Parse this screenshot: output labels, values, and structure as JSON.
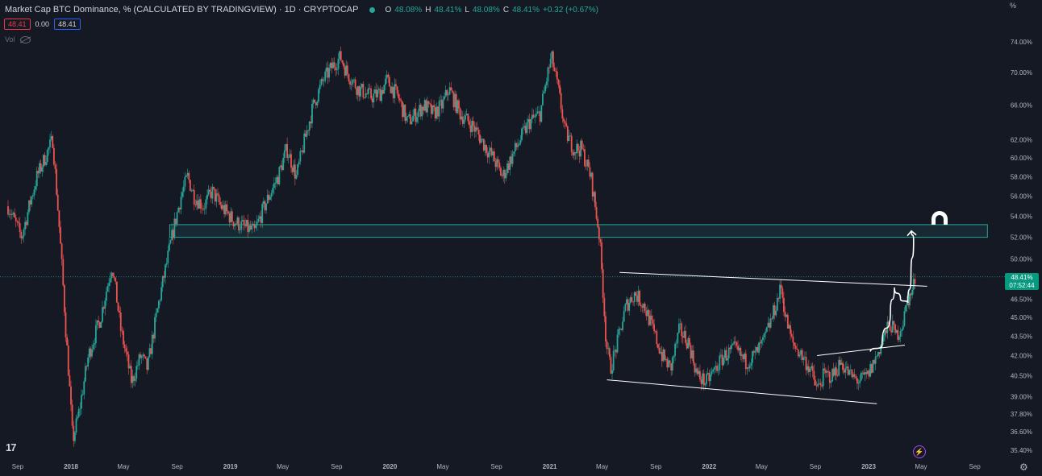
{
  "header": {
    "title": "Market Cap BTC Dominance, % (CALCULATED BY TRADINGVIEW) · 1D · CRYPTOCAP",
    "o_label": "O",
    "o_value": "48.08%",
    "h_label": "H",
    "h_value": "48.41%",
    "l_label": "L",
    "l_value": "48.08%",
    "c_label": "C",
    "c_value": "48.41%",
    "change": "+0.32 (+0.67%)"
  },
  "indicators": {
    "price_box": "48.41",
    "spread": "0.00",
    "price_box2": "48.41",
    "vol_label": "Vol"
  },
  "axis": {
    "unit": "%"
  },
  "price_tag": {
    "value": "48.41%",
    "countdown": "07:52:44"
  },
  "colors": {
    "up": "#26a69a",
    "down": "#ef5350",
    "zone": "#26a69a",
    "background": "#151924",
    "drawing": "#ffffff"
  },
  "icons": {
    "logo": "tradingview-logo-icon",
    "lightning": "lightning-icon",
    "settings": "gear-icon",
    "target": "magnet-icon",
    "visibility": "eye-off-icon"
  },
  "chart_data": {
    "type": "candlestick",
    "y_scale": "log",
    "y_ticks": [
      "74.00%",
      "70.00%",
      "66.00%",
      "62.00%",
      "60.00%",
      "58.00%",
      "56.00%",
      "54.00%",
      "52.00%",
      "50.00%",
      "46.50%",
      "45.00%",
      "43.50%",
      "42.00%",
      "40.50%",
      "39.00%",
      "37.80%",
      "36.60%",
      "35.40%"
    ],
    "y_tick_values": [
      74,
      70,
      66,
      62,
      60,
      58,
      56,
      54,
      52,
      50,
      46.5,
      45,
      43.5,
      42,
      40.5,
      39,
      37.8,
      36.6,
      35.4
    ],
    "x_ticks": [
      "Sep",
      "2018",
      "May",
      "Sep",
      "2019",
      "May",
      "Sep",
      "2020",
      "May",
      "Sep",
      "2021",
      "May",
      "Sep",
      "2022",
      "May",
      "Sep",
      "2023",
      "May",
      "Sep"
    ],
    "x_tick_dates": [
      "2017-09-01",
      "2018-01-01",
      "2018-05-01",
      "2018-09-01",
      "2019-01-01",
      "2019-05-01",
      "2019-09-01",
      "2020-01-01",
      "2020-05-01",
      "2020-09-01",
      "2021-01-01",
      "2021-05-01",
      "2021-09-01",
      "2022-01-01",
      "2022-05-01",
      "2022-09-01",
      "2023-01-01",
      "2023-05-01",
      "2023-09-01"
    ],
    "last_value": 48.41,
    "price_path": [
      [
        "2017-08-10",
        55
      ],
      [
        "2017-09-10",
        52
      ],
      [
        "2017-10-15",
        58
      ],
      [
        "2017-11-20",
        62
      ],
      [
        "2017-12-20",
        44
      ],
      [
        "2018-01-05",
        36
      ],
      [
        "2018-01-20",
        38
      ],
      [
        "2018-02-10",
        42
      ],
      [
        "2018-03-10",
        45
      ],
      [
        "2018-04-05",
        49.5
      ],
      [
        "2018-04-25",
        44
      ],
      [
        "2018-05-20",
        40
      ],
      [
        "2018-06-10",
        42
      ],
      [
        "2018-06-25",
        41
      ],
      [
        "2018-07-20",
        46
      ],
      [
        "2018-08-10",
        50
      ],
      [
        "2018-08-25",
        53
      ],
      [
        "2018-09-10",
        56
      ],
      [
        "2018-09-25",
        58
      ],
      [
        "2018-10-10",
        56
      ],
      [
        "2018-11-01",
        55
      ],
      [
        "2018-11-20",
        56.5
      ],
      [
        "2018-12-10",
        55
      ],
      [
        "2019-01-10",
        53.5
      ],
      [
        "2019-02-01",
        53
      ],
      [
        "2019-02-25",
        52.5
      ],
      [
        "2019-03-20",
        55
      ],
      [
        "2019-04-20",
        58
      ],
      [
        "2019-05-10",
        61
      ],
      [
        "2019-06-01",
        58
      ],
      [
        "2019-06-20",
        62
      ],
      [
        "2019-07-10",
        66
      ],
      [
        "2019-08-01",
        69
      ],
      [
        "2019-08-25",
        71
      ],
      [
        "2019-09-10",
        72
      ],
      [
        "2019-09-25",
        70
      ],
      [
        "2019-10-20",
        68
      ],
      [
        "2019-11-20",
        67
      ],
      [
        "2019-12-10",
        67.5
      ],
      [
        "2019-12-25",
        69
      ],
      [
        "2020-01-20",
        67
      ],
      [
        "2020-02-10",
        64
      ],
      [
        "2020-03-01",
        65
      ],
      [
        "2020-03-20",
        66
      ],
      [
        "2020-04-10",
        65
      ],
      [
        "2020-04-30",
        66
      ],
      [
        "2020-05-15",
        68
      ],
      [
        "2020-06-10",
        65
      ],
      [
        "2020-07-10",
        63.5
      ],
      [
        "2020-08-10",
        61
      ],
      [
        "2020-08-25",
        60
      ],
      [
        "2020-09-15",
        58
      ],
      [
        "2020-10-05",
        60
      ],
      [
        "2020-10-25",
        62
      ],
      [
        "2020-11-15",
        64
      ],
      [
        "2020-12-10",
        65
      ],
      [
        "2020-12-28",
        70
      ],
      [
        "2021-01-05",
        72
      ],
      [
        "2021-01-20",
        68
      ],
      [
        "2021-02-05",
        63
      ],
      [
        "2021-02-25",
        61
      ],
      [
        "2021-03-15",
        61
      ],
      [
        "2021-04-05",
        58
      ],
      [
        "2021-04-25",
        52
      ],
      [
        "2021-05-10",
        43
      ],
      [
        "2021-05-20",
        41
      ],
      [
        "2021-06-05",
        43
      ],
      [
        "2021-06-25",
        46
      ],
      [
        "2021-07-15",
        47
      ],
      [
        "2021-08-05",
        46
      ],
      [
        "2021-08-25",
        44
      ],
      [
        "2021-09-15",
        42
      ],
      [
        "2021-10-05",
        41
      ],
      [
        "2021-10-25",
        44
      ],
      [
        "2021-11-15",
        43
      ],
      [
        "2021-12-05",
        40.5
      ],
      [
        "2021-12-25",
        40
      ],
      [
        "2022-01-15",
        41
      ],
      [
        "2022-02-05",
        42
      ],
      [
        "2022-03-01",
        42.5
      ],
      [
        "2022-03-25",
        41.5
      ],
      [
        "2022-04-15",
        42
      ],
      [
        "2022-05-05",
        43
      ],
      [
        "2022-05-25",
        45
      ],
      [
        "2022-06-15",
        47.5
      ],
      [
        "2022-06-25",
        45
      ],
      [
        "2022-07-10",
        43
      ],
      [
        "2022-08-01",
        42
      ],
      [
        "2022-08-20",
        41
      ],
      [
        "2022-09-05",
        39.5
      ],
      [
        "2022-09-20",
        40.5
      ],
      [
        "2022-10-10",
        40.5
      ],
      [
        "2022-10-30",
        41.5
      ],
      [
        "2022-11-20",
        40.5
      ],
      [
        "2022-12-10",
        40.1
      ],
      [
        "2022-12-30",
        40.5
      ],
      [
        "2023-01-20",
        42
      ],
      [
        "2023-02-05",
        43.5
      ],
      [
        "2023-02-20",
        44.5
      ],
      [
        "2023-03-05",
        43.5
      ],
      [
        "2023-03-20",
        44.5
      ],
      [
        "2023-04-01",
        46.5
      ],
      [
        "2023-04-10",
        47
      ],
      [
        "2023-04-18",
        48.41
      ]
    ]
  },
  "annotations": {
    "zone": {
      "from": "2018-08-15",
      "to": "2023-09-30",
      "low": 52.0,
      "high": 53.2
    },
    "lines": [
      {
        "from": [
          "2021-05-12",
          40.2
        ],
        "to": [
          "2023-01-20",
          38.5
        ]
      },
      {
        "from": [
          "2021-06-10",
          48.8
        ],
        "to": [
          "2023-05-15",
          47.6
        ]
      },
      {
        "from": [
          "2022-09-05",
          42.0
        ],
        "to": [
          "2023-03-25",
          42.8
        ]
      }
    ],
    "arrow_path": [
      [
        "2023-01-05",
        42.3
      ],
      [
        "2023-02-01",
        42.8
      ],
      [
        "2023-02-20",
        45.5
      ],
      [
        "2023-03-01",
        47.5
      ],
      [
        "2023-03-15",
        46.5
      ],
      [
        "2023-04-01",
        46.2
      ],
      [
        "2023-04-08",
        48.5
      ],
      [
        "2023-04-14",
        51.8
      ],
      [
        "2023-04-09",
        52.6
      ]
    ]
  }
}
